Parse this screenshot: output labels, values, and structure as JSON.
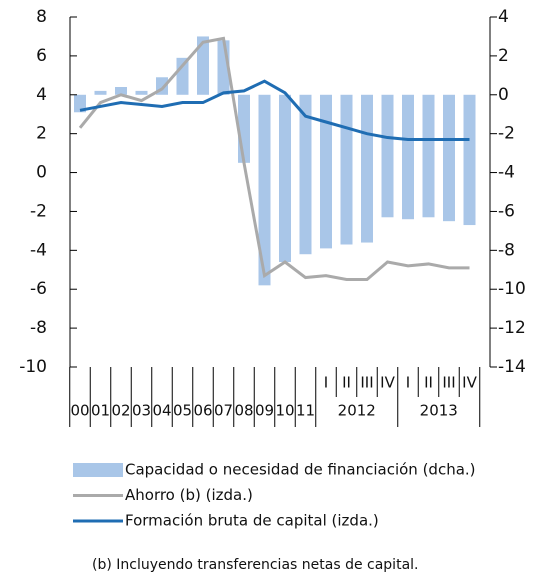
{
  "chart_data": {
    "type": "bar_line",
    "categories": [
      "00",
      "01",
      "02",
      "03",
      "04",
      "05",
      "06",
      "07",
      "08",
      "09",
      "10",
      "11",
      "I",
      "II",
      "III",
      "IV",
      "I",
      "II",
      "III",
      "IV"
    ],
    "groups": [
      "2012",
      "2013"
    ],
    "ylim": [
      -10,
      8
    ],
    "yticks": [
      8,
      6,
      4,
      2,
      0,
      -2,
      -4,
      -6,
      -8,
      -10
    ],
    "y2lim": [
      -14,
      4
    ],
    "y2ticks": [
      4,
      2,
      0,
      -2,
      -4,
      -6,
      -8,
      -10,
      -12,
      -14
    ],
    "series": [
      {
        "name": "Capacidad o necesidad de financiación (dcha.)",
        "type": "bar",
        "axis": "y2",
        "color": "#a9c6e8",
        "values": [
          -0.9,
          0.2,
          0.4,
          0.2,
          0.9,
          1.9,
          3.0,
          2.8,
          -3.5,
          -9.8,
          -8.6,
          -8.2,
          -7.9,
          -7.7,
          -7.6,
          -6.3,
          -6.4,
          -6.3,
          -6.5,
          -6.7
        ]
      },
      {
        "name": "Ahorro (b) (izda.)",
        "type": "line",
        "color": "#aaaaaa",
        "values": [
          2.3,
          3.6,
          4.0,
          3.7,
          4.3,
          5.5,
          6.7,
          6.9,
          0.5,
          -5.3,
          -4.6,
          -5.4,
          -5.3,
          -5.5,
          -5.5,
          -4.6,
          -4.8,
          -4.7,
          -4.9,
          -4.9
        ]
      },
      {
        "name": "Formación bruta de capital (izda.)",
        "type": "line",
        "color": "#1f6db3",
        "values": [
          3.2,
          3.4,
          3.6,
          3.5,
          3.4,
          3.6,
          3.6,
          4.1,
          4.2,
          4.7,
          4.1,
          2.9,
          2.6,
          2.3,
          2.0,
          1.8,
          1.7,
          1.7,
          1.7,
          1.7
        ]
      }
    ],
    "footnote": "(b) Incluyendo transferencias netas de capital."
  }
}
